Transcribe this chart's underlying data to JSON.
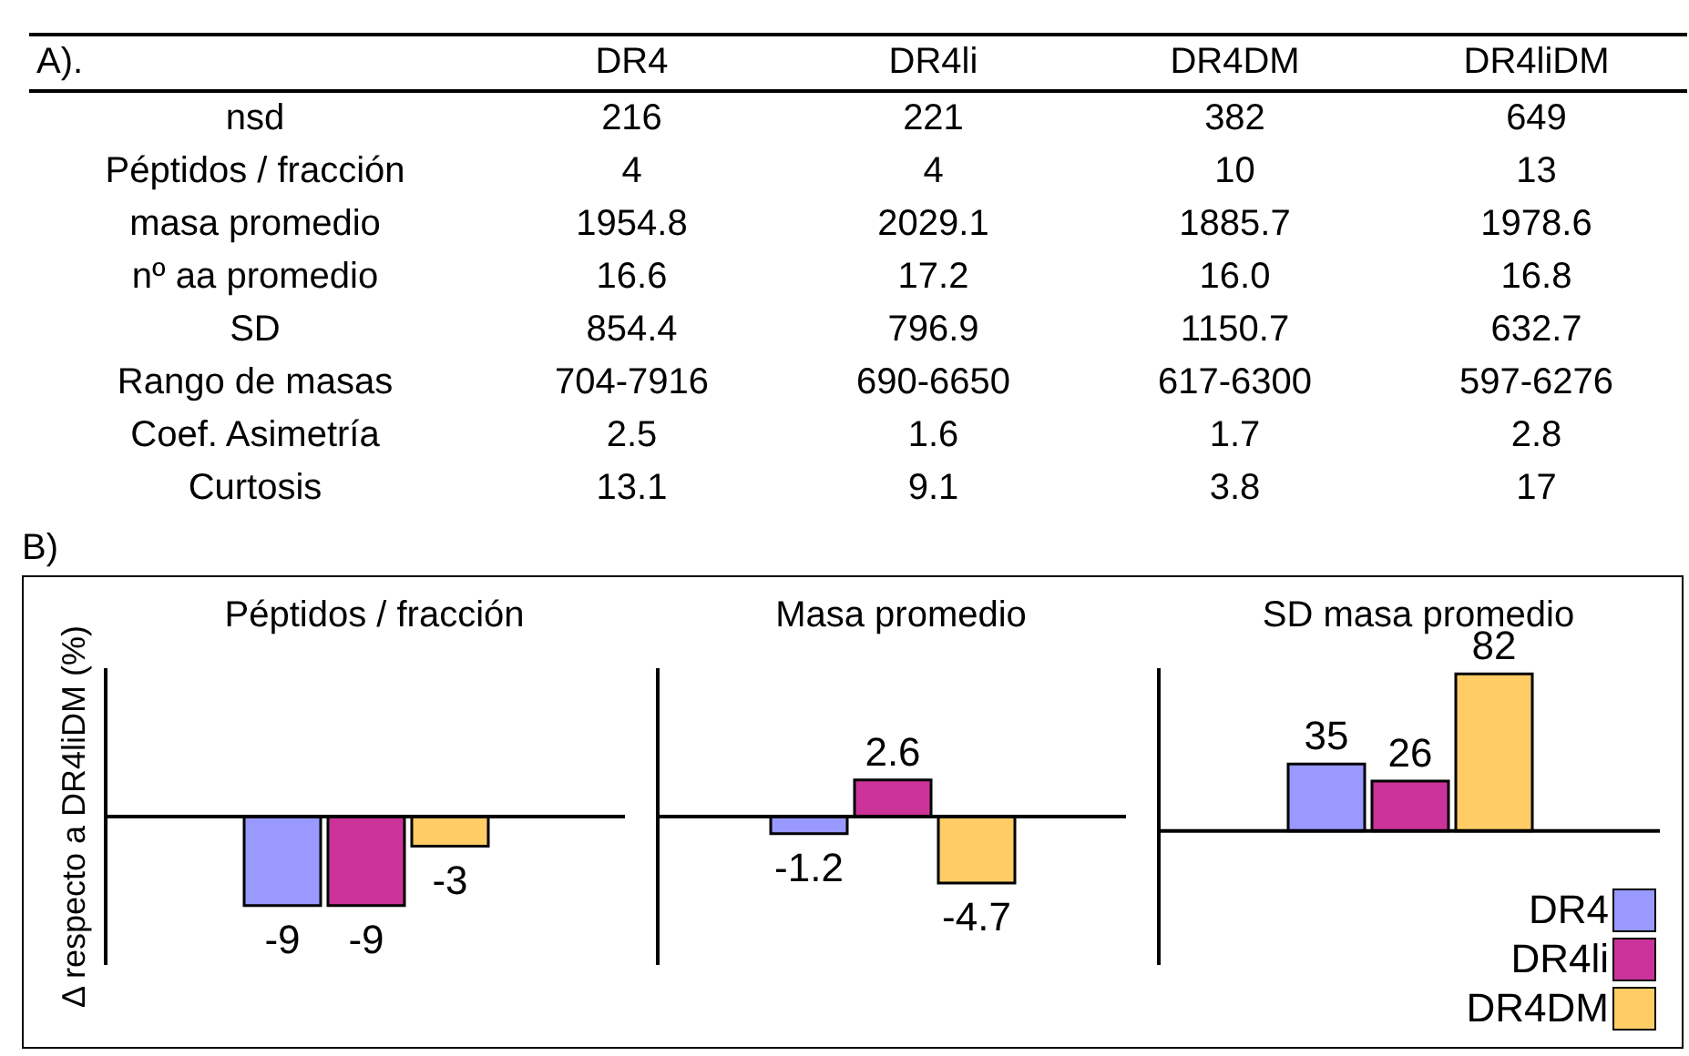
{
  "chart_data": [
    {
      "type": "other",
      "title": "A).",
      "categories": [
        "DR4",
        "DR4li",
        "DR4DM",
        "DR4liDM"
      ],
      "y_categories": [
        "nsd",
        "Péptidos / fracción",
        "masa promedio",
        "nº aa promedio",
        "SD",
        "Rango de masas",
        "Coef. Asimetría",
        "Curtosis"
      ],
      "cell_labels": [
        [
          "216",
          "221",
          "382",
          "649"
        ],
        [
          "4",
          "4",
          "10",
          "13"
        ],
        [
          "1954.8",
          "2029.1",
          "1885.7",
          "1978.6"
        ],
        [
          "16.6",
          "17.2",
          "16.0",
          "16.8"
        ],
        [
          "854.4",
          "796.9",
          "1150.7",
          "632.7"
        ],
        [
          "704-7916",
          "690-6650",
          "617-6300",
          "597-6276"
        ],
        [
          "2.5",
          "1.6",
          "1.7",
          "2.8"
        ],
        [
          "13.1",
          "9.1",
          "3.8",
          "17"
        ]
      ]
    },
    {
      "type": "bar",
      "title": "Péptidos / fracción",
      "ylabel": "Δ respecto a DR4liDM (%)",
      "annotations": [
        "B)"
      ],
      "categories": [
        null
      ],
      "ylim": [
        -15,
        15
      ],
      "tick_labels": false,
      "data_labels": true,
      "legend": false,
      "series": [
        {
          "color": "#9999ff",
          "values": [
            -9
          ]
        },
        {
          "color": "#cc3399",
          "values": [
            -9
          ]
        },
        {
          "color": "#ffcc66",
          "values": [
            -3
          ]
        }
      ]
    },
    {
      "type": "bar",
      "title": "Masa promedio",
      "categories": [
        null
      ],
      "ylim": [
        -10.5,
        10.5
      ],
      "tick_labels": false,
      "data_labels": true,
      "legend": false,
      "series": [
        {
          "color": "#9999ff",
          "values": [
            -1.2
          ]
        },
        {
          "color": "#cc3399",
          "values": [
            2.6
          ]
        },
        {
          "color": "#ffcc66",
          "values": [
            -4.7
          ]
        }
      ]
    },
    {
      "type": "bar",
      "title": "SD masa promedio",
      "categories": [
        null
      ],
      "ylim": [
        -70,
        85
      ],
      "tick_labels": false,
      "data_labels": true,
      "legend": "bottom right",
      "series": [
        {
          "name": "DR4",
          "color": "#9999ff",
          "values": [
            35
          ]
        },
        {
          "name": "DR4li",
          "color": "#cc3399",
          "values": [
            26
          ]
        },
        {
          "name": "DR4DM",
          "color": "#ffcc66",
          "values": [
            82
          ]
        }
      ]
    }
  ]
}
